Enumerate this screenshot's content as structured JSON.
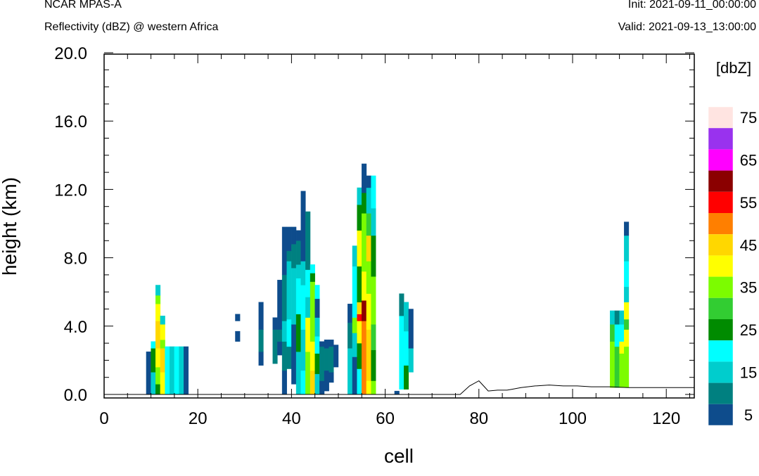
{
  "header": {
    "model": "NCAR MPAS-A",
    "subtitle": "Reflectivity (dBZ) @ western Africa",
    "init": "Init: 2021-09-11_00:00:00",
    "valid": "Valid: 2021-09-13_13:00:00"
  },
  "chart_data": {
    "type": "heatmap",
    "xlabel": "cell",
    "ylabel": "height (km)",
    "xlim": [
      0,
      126
    ],
    "ylim": [
      -0.4,
      20.0
    ],
    "x_ticks": [
      "0",
      "20",
      "40",
      "60",
      "80",
      "100",
      "120"
    ],
    "y_ticks": [
      "0.0",
      "4.0",
      "8.0",
      "12.0",
      "16.0",
      "20.0"
    ],
    "colorbar": {
      "title": "[dbZ]",
      "labels": [
        "5",
        "15",
        "25",
        "35",
        "45",
        "55",
        "65",
        "75"
      ],
      "levels": [
        0,
        10,
        15,
        20,
        25,
        30,
        35,
        40,
        45,
        50,
        55,
        60,
        65,
        70,
        75
      ],
      "colors": [
        "#0e4c8c",
        "#008080",
        "#00cdcd",
        "#00ffff",
        "#008b00",
        "#32cd32",
        "#7cfc00",
        "#ffff00",
        "#ffd700",
        "#ff7f00",
        "#ff0000",
        "#8b0000",
        "#ff00ff",
        "#9932ee",
        "#ffe4e1"
      ]
    },
    "columns": [
      {
        "x": 9,
        "bins": [
          [
            0.0,
            2.5,
            5
          ]
        ]
      },
      {
        "x": 10,
        "bins": [
          [
            0.0,
            1.3,
            15
          ],
          [
            1.3,
            2.7,
            25
          ],
          [
            2.7,
            3.1,
            20
          ]
        ]
      },
      {
        "x": 11,
        "bins": [
          [
            0.0,
            0.6,
            25
          ],
          [
            0.6,
            1.6,
            35
          ],
          [
            1.6,
            2.7,
            40
          ],
          [
            2.7,
            4.3,
            45
          ],
          [
            4.3,
            5.3,
            40
          ],
          [
            5.3,
            5.8,
            35
          ],
          [
            5.8,
            6.4,
            15
          ]
        ]
      },
      {
        "x": 12,
        "bins": [
          [
            0.0,
            1.3,
            40
          ],
          [
            1.3,
            2.7,
            45
          ],
          [
            2.7,
            3.2,
            35
          ],
          [
            3.2,
            4.1,
            40
          ],
          [
            4.1,
            4.6,
            15
          ]
        ]
      },
      {
        "x": 13,
        "bins": [
          [
            0.0,
            2.8,
            20
          ]
        ]
      },
      {
        "x": 14,
        "bins": [
          [
            0.0,
            2.8,
            15
          ]
        ]
      },
      {
        "x": 15,
        "bins": [
          [
            0.0,
            2.8,
            20
          ]
        ]
      },
      {
        "x": 16,
        "bins": [
          [
            0.0,
            2.8,
            15
          ]
        ]
      },
      {
        "x": 17,
        "bins": [
          [
            0.0,
            2.8,
            5
          ]
        ]
      },
      {
        "x": 28,
        "bins": [
          [
            3.1,
            3.7,
            5
          ],
          [
            4.3,
            4.7,
            5
          ]
        ]
      },
      {
        "x": 33,
        "bins": [
          [
            1.7,
            2.5,
            5
          ],
          [
            2.5,
            3.8,
            10
          ],
          [
            3.8,
            5.4,
            5
          ]
        ]
      },
      {
        "x": 36,
        "bins": [
          [
            1.8,
            3.8,
            10
          ],
          [
            3.8,
            4.5,
            5
          ]
        ]
      },
      {
        "x": 37,
        "bins": [
          [
            2.3,
            3.1,
            5
          ],
          [
            3.1,
            3.8,
            10
          ],
          [
            3.8,
            6.7,
            5
          ]
        ]
      },
      {
        "x": 38,
        "bins": [
          [
            0.0,
            1.4,
            5
          ],
          [
            1.4,
            3.1,
            10
          ],
          [
            3.1,
            4.3,
            15
          ],
          [
            4.3,
            7.0,
            10
          ],
          [
            7.0,
            9.8,
            5
          ]
        ]
      },
      {
        "x": 39,
        "bins": [
          [
            1.5,
            2.8,
            10
          ],
          [
            2.8,
            4.4,
            20
          ],
          [
            4.4,
            7.8,
            15
          ],
          [
            7.8,
            8.4,
            10
          ],
          [
            8.4,
            9.8,
            5
          ]
        ]
      },
      {
        "x": 40,
        "bins": [
          [
            0.6,
            4.1,
            5
          ],
          [
            4.1,
            7.4,
            15
          ],
          [
            7.4,
            8.8,
            10
          ],
          [
            8.8,
            9.8,
            5
          ]
        ]
      },
      {
        "x": 41,
        "bins": [
          [
            0.0,
            2.5,
            15
          ],
          [
            2.5,
            4.7,
            25
          ],
          [
            4.7,
            6.8,
            20
          ],
          [
            6.8,
            7.6,
            15
          ],
          [
            7.6,
            9.0,
            10
          ],
          [
            9.0,
            9.6,
            5
          ]
        ]
      },
      {
        "x": 42,
        "bins": [
          [
            0.0,
            1.4,
            20
          ],
          [
            1.4,
            3.8,
            15
          ],
          [
            3.8,
            6.4,
            20
          ],
          [
            6.4,
            7.8,
            15
          ],
          [
            7.8,
            11.9,
            5
          ]
        ]
      },
      {
        "x": 43,
        "bins": [
          [
            0.0,
            2.5,
            35
          ],
          [
            2.5,
            4.5,
            40
          ],
          [
            4.5,
            5.7,
            15
          ],
          [
            5.7,
            7.3,
            20
          ],
          [
            7.3,
            10.7,
            10
          ]
        ]
      },
      {
        "x": 44,
        "bins": [
          [
            0.0,
            1.4,
            45
          ],
          [
            1.4,
            3.1,
            40
          ],
          [
            3.1,
            4.5,
            35
          ],
          [
            4.5,
            6.6,
            35
          ],
          [
            6.6,
            7.1,
            25
          ],
          [
            7.1,
            7.6,
            20
          ]
        ]
      },
      {
        "x": 45,
        "bins": [
          [
            0.0,
            1.2,
            15
          ],
          [
            1.2,
            2.4,
            25
          ],
          [
            2.4,
            3.4,
            20
          ],
          [
            3.4,
            4.5,
            15
          ],
          [
            4.5,
            5.6,
            5
          ],
          [
            5.6,
            6.4,
            20
          ]
        ]
      },
      {
        "x": 46,
        "bins": [
          [
            0.0,
            0.8,
            5
          ],
          [
            0.8,
            2.8,
            10
          ],
          [
            2.8,
            3.1,
            5
          ]
        ]
      },
      {
        "x": 47,
        "bins": [
          [
            0.2,
            1.4,
            5
          ],
          [
            1.4,
            2.7,
            10
          ],
          [
            2.7,
            3.2,
            5
          ]
        ]
      },
      {
        "x": 48,
        "bins": [
          [
            0.7,
            1.3,
            5
          ],
          [
            1.3,
            2.8,
            10
          ],
          [
            2.8,
            3.2,
            5
          ]
        ]
      },
      {
        "x": 49,
        "bins": [
          [
            1.6,
            2.9,
            5
          ]
        ]
      },
      {
        "x": 52,
        "bins": [
          [
            0.0,
            2.7,
            15
          ],
          [
            2.7,
            4.2,
            10
          ],
          [
            4.2,
            5.3,
            5
          ]
        ]
      },
      {
        "x": 53,
        "bins": [
          [
            0.0,
            2.2,
            5
          ],
          [
            2.2,
            3.6,
            15
          ],
          [
            3.6,
            4.5,
            35
          ],
          [
            4.5,
            7.5,
            20
          ],
          [
            7.5,
            8.7,
            15
          ]
        ]
      },
      {
        "x": 54,
        "bins": [
          [
            0.0,
            1.5,
            20
          ],
          [
            1.5,
            3.0,
            25
          ],
          [
            3.0,
            4.3,
            40
          ],
          [
            4.3,
            4.7,
            55
          ],
          [
            4.7,
            5.4,
            45
          ],
          [
            5.4,
            7.5,
            25
          ],
          [
            7.5,
            9.6,
            40
          ],
          [
            9.6,
            11.1,
            25
          ],
          [
            11.1,
            12.1,
            15
          ]
        ]
      },
      {
        "x": 55,
        "bins": [
          [
            0.0,
            4.3,
            50
          ],
          [
            4.3,
            5.5,
            60
          ],
          [
            5.5,
            7.2,
            40
          ],
          [
            7.2,
            10.6,
            35
          ],
          [
            10.6,
            11.8,
            25
          ],
          [
            11.8,
            13.5,
            5
          ]
        ]
      },
      {
        "x": 56,
        "bins": [
          [
            0.0,
            0.8,
            40
          ],
          [
            0.8,
            3.8,
            45
          ],
          [
            3.8,
            5.9,
            40
          ],
          [
            5.9,
            7.8,
            35
          ],
          [
            7.8,
            9.3,
            45
          ],
          [
            9.3,
            10.6,
            30
          ],
          [
            10.6,
            12.1,
            15
          ],
          [
            12.1,
            12.8,
            5
          ]
        ]
      },
      {
        "x": 57,
        "bins": [
          [
            0.0,
            0.8,
            35
          ],
          [
            0.8,
            2.6,
            25
          ],
          [
            2.6,
            4.1,
            30
          ],
          [
            4.1,
            6.9,
            35
          ],
          [
            6.9,
            9.3,
            25
          ],
          [
            9.3,
            10.9,
            15
          ],
          [
            10.9,
            12.8,
            20
          ]
        ]
      },
      {
        "x": 62,
        "bins": [
          [
            0.0,
            0.2,
            5
          ]
        ]
      },
      {
        "x": 63,
        "bins": [
          [
            0.3,
            4.6,
            20
          ],
          [
            4.6,
            5.9,
            10
          ]
        ]
      },
      {
        "x": 64,
        "bins": [
          [
            0.3,
            1.7,
            25
          ],
          [
            1.7,
            3.7,
            20
          ],
          [
            3.7,
            5.4,
            15
          ]
        ]
      },
      {
        "x": 65,
        "bins": [
          [
            1.3,
            2.7,
            15
          ],
          [
            2.7,
            5.0,
            5
          ]
        ]
      },
      {
        "x": 108,
        "bins": [
          [
            0.4,
            3.1,
            35
          ],
          [
            3.1,
            4.1,
            30
          ],
          [
            4.1,
            4.9,
            15
          ]
        ]
      },
      {
        "x": 109,
        "bins": [
          [
            0.4,
            2.8,
            30
          ],
          [
            2.8,
            4.1,
            20
          ],
          [
            4.1,
            4.9,
            10
          ]
        ]
      },
      {
        "x": 110,
        "bins": [
          [
            0.4,
            2.4,
            35
          ],
          [
            2.4,
            3.1,
            40
          ],
          [
            3.1,
            4.1,
            20
          ],
          [
            4.1,
            4.9,
            15
          ]
        ]
      },
      {
        "x": 111,
        "bins": [
          [
            0.4,
            2.8,
            35
          ],
          [
            2.8,
            3.8,
            40
          ],
          [
            3.8,
            4.4,
            30
          ],
          [
            4.4,
            5.4,
            40
          ],
          [
            5.4,
            6.3,
            15
          ],
          [
            6.3,
            7.8,
            20
          ],
          [
            7.8,
            9.3,
            15
          ],
          [
            9.3,
            10.1,
            5
          ]
        ]
      }
    ],
    "terrain": [
      [
        0,
        0.0
      ],
      [
        76,
        0.0
      ],
      [
        78,
        0.5
      ],
      [
        80,
        0.8
      ],
      [
        81,
        0.5
      ],
      [
        82,
        0.2
      ],
      [
        84,
        0.25
      ],
      [
        86,
        0.25
      ],
      [
        87,
        0.3
      ],
      [
        89,
        0.4
      ],
      [
        92,
        0.5
      ],
      [
        95,
        0.55
      ],
      [
        98,
        0.5
      ],
      [
        101,
        0.5
      ],
      [
        104,
        0.45
      ],
      [
        108,
        0.45
      ],
      [
        112,
        0.4
      ],
      [
        116,
        0.4
      ],
      [
        120,
        0.4
      ],
      [
        126,
        0.4
      ]
    ]
  }
}
